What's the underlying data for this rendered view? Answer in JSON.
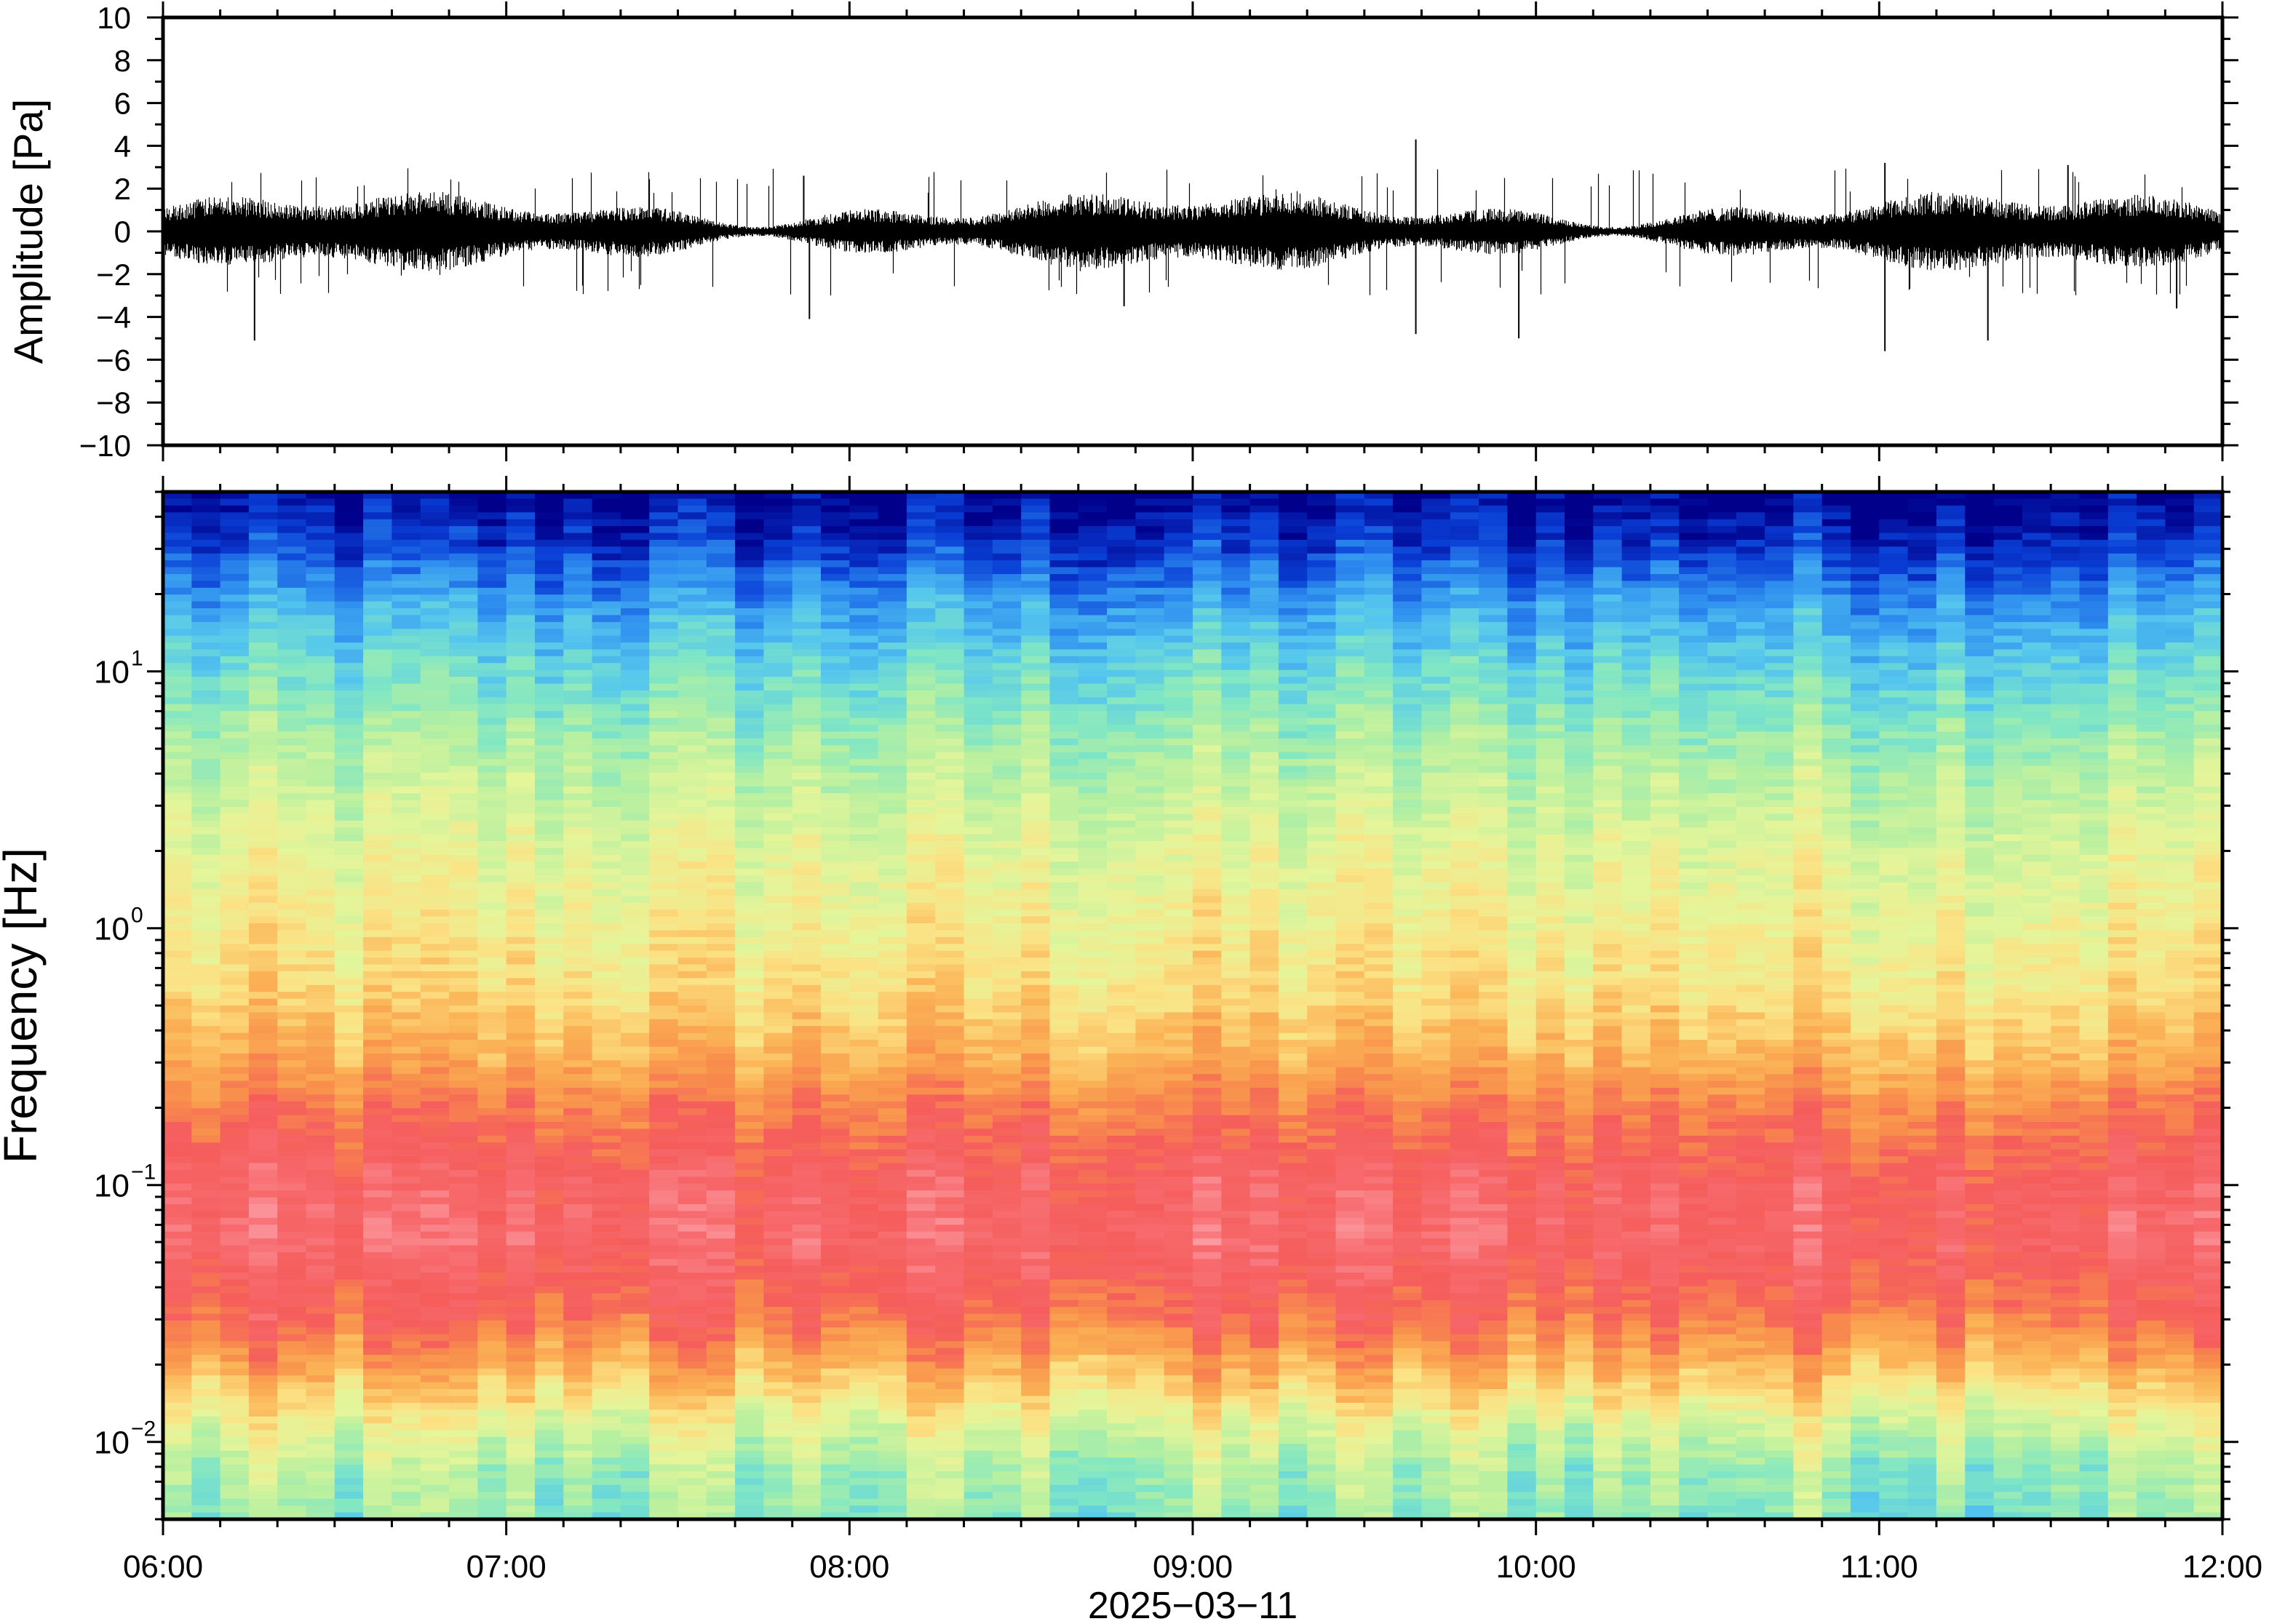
{
  "chart_data": [
    {
      "type": "line",
      "panel": "waveform",
      "ylabel": "Amplitude [Pa]",
      "ylim": [
        -10,
        10
      ],
      "yticks": [
        10,
        8,
        6,
        4,
        2,
        0,
        -2,
        -4,
        -6,
        -8,
        -10
      ],
      "ytick_labels": [
        "10",
        "8",
        "6",
        "4",
        "2",
        "0",
        "−2",
        "−4",
        "−6",
        "−8",
        "−10"
      ],
      "xlim": [
        "06:00",
        "12:00"
      ],
      "noise_band_pa": 1.2,
      "spikes": [
        {
          "t": "06:16",
          "v": -5.1
        },
        {
          "t": "07:53",
          "v": -4.1
        },
        {
          "t": "07:52",
          "v": 2.6
        },
        {
          "t": "08:48",
          "v": -3.5
        },
        {
          "t": "09:39",
          "v": 4.3
        },
        {
          "t": "09:39",
          "v": -4.8
        },
        {
          "t": "09:57",
          "v": -5.0
        },
        {
          "t": "11:01",
          "v": 3.2
        },
        {
          "t": "11:01",
          "v": -5.6
        },
        {
          "t": "11:19",
          "v": -5.1
        },
        {
          "t": "11:33",
          "v": 3.1
        },
        {
          "t": "11:52",
          "v": -3.6
        }
      ],
      "color": "#000000"
    },
    {
      "type": "heatmap",
      "panel": "spectrogram",
      "ylabel": "Frequency [Hz]",
      "yscale": "log",
      "ylim": [
        0.005,
        50
      ],
      "yticks": [
        {
          "value": 0.01,
          "base": "10",
          "exp": "−2"
        },
        {
          "value": 0.1,
          "base": "10",
          "exp": "−1"
        },
        {
          "value": 1,
          "base": "10",
          "exp": "0"
        },
        {
          "value": 10,
          "base": "10",
          "exp": "1"
        }
      ],
      "colormap": [
        "#00008b",
        "#0a3fd6",
        "#2f8fef",
        "#55c6ee",
        "#7fe6c5",
        "#b8f0a0",
        "#e4f59a",
        "#fbe284",
        "#fbb356",
        "#f8904c",
        "#f55d5b",
        "#f76a6d",
        "#fb9ea4"
      ],
      "profile": [
        {
          "freq": 50,
          "level": 0.0
        },
        {
          "freq": 30,
          "level": 0.08
        },
        {
          "freq": 18,
          "level": 0.2
        },
        {
          "freq": 10,
          "level": 0.3
        },
        {
          "freq": 5,
          "level": 0.4
        },
        {
          "freq": 2,
          "level": 0.5
        },
        {
          "freq": 0.6,
          "level": 0.58
        },
        {
          "freq": 0.3,
          "level": 0.68
        },
        {
          "freq": 0.2,
          "level": 0.78
        },
        {
          "freq": 0.1,
          "level": 0.88
        },
        {
          "freq": 0.06,
          "level": 0.9
        },
        {
          "freq": 0.03,
          "level": 0.8
        },
        {
          "freq": 0.02,
          "level": 0.68
        },
        {
          "freq": 0.012,
          "level": 0.5
        },
        {
          "freq": 0.008,
          "level": 0.4
        },
        {
          "freq": 0.005,
          "level": 0.36
        }
      ],
      "xlim": [
        "06:00",
        "12:00"
      ]
    }
  ],
  "xaxis": {
    "ticks": [
      "06:00",
      "07:00",
      "08:00",
      "09:00",
      "10:00",
      "11:00",
      "12:00"
    ],
    "date_label": "2025−03−11"
  }
}
